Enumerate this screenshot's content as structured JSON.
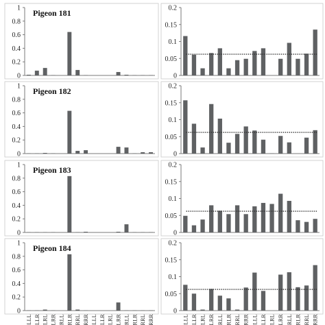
{
  "chart_data": {
    "type": "bar",
    "categories": [
      "LLLL",
      "LLLR",
      "LLRL",
      "LLRR",
      "LRLL",
      "LRLR",
      "LRRL",
      "LRRR",
      "RLLL",
      "RLLR",
      "RLRL",
      "RLRR",
      "RRLL",
      "RRLR",
      "RRRL",
      "RRRR"
    ],
    "colors": {
      "bar": "#5f6163",
      "axis": "#7a7a7a",
      "reference": "#333333"
    },
    "left_axis": {
      "ylim": [
        0,
        1
      ],
      "ticks": [
        "0",
        "0.2",
        "0.4",
        "0.6",
        "0.8",
        "1"
      ]
    },
    "right_axis": {
      "ylim": [
        0,
        0.2
      ],
      "ticks": [
        "0",
        "0.05",
        "0.1",
        "0.15",
        "0.2"
      ],
      "reference_line": 0.0625,
      "reference_style": "dotted"
    },
    "panels": [
      {
        "title": "Pigeon 181",
        "left_values": [
          0.01,
          0.07,
          0.11,
          0.005,
          0.0,
          0.64,
          0.08,
          0.005,
          0.0,
          0.0,
          0.0,
          0.05,
          0.01,
          0.005,
          0.005,
          0.005
        ],
        "right_values": [
          0.116,
          0.061,
          0.021,
          0.066,
          0.08,
          0.021,
          0.045,
          0.049,
          0.072,
          0.08,
          0.0,
          0.049,
          0.096,
          0.049,
          0.064,
          0.135
        ]
      },
      {
        "title": "Pigeon 182",
        "left_values": [
          0.005,
          0.005,
          0.01,
          0.005,
          0.0,
          0.63,
          0.04,
          0.05,
          0.0,
          0.0,
          0.0,
          0.1,
          0.09,
          0.005,
          0.02,
          0.02
        ],
        "right_values": [
          0.157,
          0.088,
          0.018,
          0.146,
          0.103,
          0.032,
          0.058,
          0.08,
          0.068,
          0.041,
          0.001,
          0.052,
          0.033,
          0.0,
          0.047,
          0.069
        ]
      },
      {
        "title": "Pigeon 183",
        "left_values": [
          0.005,
          0.005,
          0.005,
          0.005,
          0.0,
          0.83,
          0.005,
          0.01,
          0.0,
          0.0,
          0.0,
          0.01,
          0.12,
          0.005,
          0.005,
          0.005
        ],
        "right_values": [
          0.049,
          0.021,
          0.038,
          0.08,
          0.064,
          0.054,
          0.08,
          0.054,
          0.077,
          0.087,
          0.084,
          0.114,
          0.093,
          0.036,
          0.031,
          0.04
        ]
      },
      {
        "title": "Pigeon 184",
        "left_values": [
          0.005,
          0.005,
          0.015,
          0.005,
          0.0,
          0.83,
          0.015,
          0.005,
          0.0,
          0.0,
          0.0,
          0.12,
          0.005,
          0.005,
          0.005,
          0.005
        ],
        "right_values": [
          0.076,
          0.05,
          0.003,
          0.064,
          0.044,
          0.036,
          0.003,
          0.068,
          0.112,
          0.058,
          0.0,
          0.106,
          0.113,
          0.069,
          0.074,
          0.134
        ]
      }
    ]
  }
}
